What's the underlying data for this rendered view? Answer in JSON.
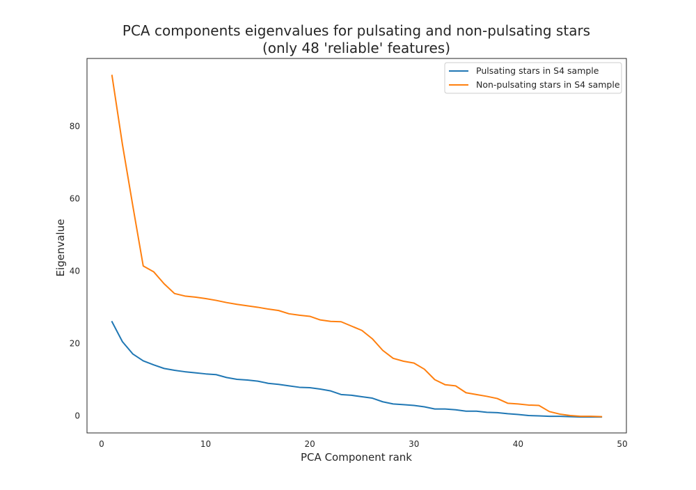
{
  "chart_data": {
    "type": "line",
    "title_line1": "PCA components eigenvalues for pulsating and non-pulsating stars",
    "title_line2": "(only 48 'reliable' features)",
    "xlabel": "PCA Component rank",
    "ylabel": "Eigenvalue",
    "xlim": [
      -1.4,
      50.4
    ],
    "ylim": [
      -4.7,
      98.7
    ],
    "xticks": [
      0,
      10,
      20,
      30,
      40,
      50
    ],
    "yticks": [
      0,
      20,
      40,
      60,
      80
    ],
    "grid": false,
    "legend_position": "top-right",
    "x": [
      1,
      2,
      3,
      4,
      5,
      6,
      7,
      8,
      9,
      10,
      11,
      12,
      13,
      14,
      15,
      16,
      17,
      18,
      19,
      20,
      21,
      22,
      23,
      24,
      25,
      26,
      27,
      28,
      29,
      30,
      31,
      32,
      33,
      34,
      35,
      36,
      37,
      38,
      39,
      40,
      41,
      42,
      43,
      44,
      45,
      46,
      47,
      48
    ],
    "series": [
      {
        "name": "Pulsating stars in S4 sample",
        "color": "#1f77b4",
        "values": [
          26.0,
          20.5,
          17.1,
          15.2,
          14.1,
          13.1,
          12.6,
          12.2,
          11.9,
          11.6,
          11.4,
          10.6,
          10.1,
          9.9,
          9.6,
          9.0,
          8.7,
          8.3,
          7.9,
          7.8,
          7.4,
          6.9,
          5.9,
          5.7,
          5.3,
          4.9,
          3.9,
          3.3,
          3.1,
          2.9,
          2.5,
          1.9,
          1.9,
          1.7,
          1.3,
          1.3,
          1.0,
          0.9,
          0.6,
          0.4,
          0.1,
          0.0,
          -0.1,
          -0.1,
          -0.2,
          -0.3,
          -0.3,
          -0.3
        ]
      },
      {
        "name": "Non-pulsating stars in S4 sample",
        "color": "#ff7f0e",
        "values": [
          94.0,
          75.0,
          58.0,
          41.4,
          39.8,
          36.5,
          33.8,
          33.1,
          32.8,
          32.4,
          31.9,
          31.3,
          30.8,
          30.4,
          30.0,
          29.5,
          29.1,
          28.2,
          27.8,
          27.5,
          26.5,
          26.1,
          26.0,
          24.8,
          23.6,
          21.3,
          18.1,
          15.9,
          15.1,
          14.6,
          12.9,
          10.0,
          8.6,
          8.3,
          6.4,
          5.9,
          5.4,
          4.8,
          3.5,
          3.3,
          3.0,
          2.9,
          1.2,
          0.5,
          0.1,
          -0.1,
          -0.1,
          -0.2
        ]
      }
    ]
  }
}
